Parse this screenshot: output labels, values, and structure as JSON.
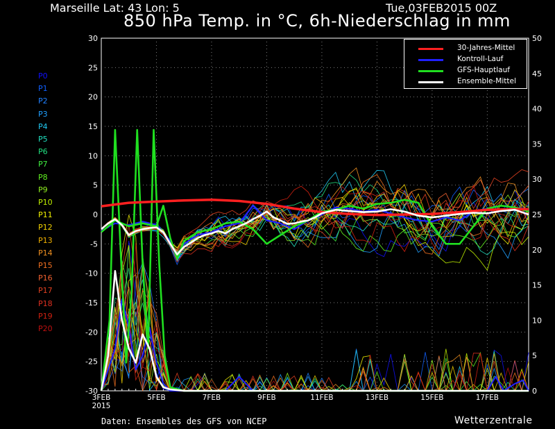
{
  "header": {
    "location": "Marseille  Lat: 43 Lon: 5",
    "date": "Tue,03FEB2015 00Z",
    "title": "850 hPa Temp. in °C, 6h-Niederschlag in mm"
  },
  "footer": {
    "source": "Daten: Ensembles des GFS von NCEP",
    "brand": "Wetterzentrale"
  },
  "colors": {
    "background": "#000000",
    "grid": "#7f7f7f",
    "clim": "#ff2020",
    "control": "#2020ff",
    "main": "#20e020",
    "mean": "#ffffff"
  },
  "ensemble_members": [
    {
      "label": "P0",
      "color": "#1010ff"
    },
    {
      "label": "P1",
      "color": "#1060ff"
    },
    {
      "label": "P2",
      "color": "#2080ff"
    },
    {
      "label": "P3",
      "color": "#20a0ff"
    },
    {
      "label": "P4",
      "color": "#20c8f0"
    },
    {
      "label": "P5",
      "color": "#20e0c0"
    },
    {
      "label": "P6",
      "color": "#20e080"
    },
    {
      "label": "P7",
      "color": "#40f040"
    },
    {
      "label": "P8",
      "color": "#60f020"
    },
    {
      "label": "P9",
      "color": "#90f020"
    },
    {
      "label": "P10",
      "color": "#c0f000"
    },
    {
      "label": "P11",
      "color": "#f0f000"
    },
    {
      "label": "P12",
      "color": "#f0d000"
    },
    {
      "label": "P13",
      "color": "#f0b000"
    },
    {
      "label": "P14",
      "color": "#f09020"
    },
    {
      "label": "P15",
      "color": "#f07020"
    },
    {
      "label": "P16",
      "color": "#f06030"
    },
    {
      "label": "P17",
      "color": "#e04020"
    },
    {
      "label": "P18",
      "color": "#e03020"
    },
    {
      "label": "P19",
      "color": "#d02010"
    },
    {
      "label": "P20",
      "color": "#c01010"
    }
  ],
  "chart_data": {
    "type": "line",
    "title": "850 hPa Temp. in °C, 6h-Niederschlag in mm",
    "x_ticks": [
      {
        "label": "3FEB",
        "sub": "2015",
        "day": 0
      },
      {
        "label": "5FEB",
        "day": 2
      },
      {
        "label": "7FEB",
        "day": 4
      },
      {
        "label": "9FEB",
        "day": 6
      },
      {
        "label": "11FEB",
        "day": 8
      },
      {
        "label": "13FEB",
        "day": 10
      },
      {
        "label": "15FEB",
        "day": 12
      },
      {
        "label": "17FEB",
        "day": 14
      }
    ],
    "xlim": [
      0,
      15.5
    ],
    "ylim_left": [
      -30,
      30
    ],
    "ylim_right": [
      0,
      50
    ],
    "y_ticks_left": [
      30,
      25,
      20,
      15,
      10,
      5,
      0,
      -5,
      -10,
      -15,
      -20,
      -25,
      -30
    ],
    "y_ticks_right": [
      50,
      45,
      40,
      35,
      30,
      25,
      20,
      15,
      10,
      5,
      0
    ],
    "grid": true,
    "legend_position": "top-right",
    "legend": [
      {
        "name": "30-Jahres-Mittel",
        "color": "#ff2020"
      },
      {
        "name": "Kontroll-Lauf",
        "color": "#2020ff"
      },
      {
        "name": "GFS-Hauptlauf",
        "color": "#20e020"
      },
      {
        "name": "Ensemble-Mittel",
        "color": "#ffffff"
      }
    ],
    "series": [
      {
        "name": "30-Jahres-Mittel",
        "axis": "left",
        "x": [
          0,
          1,
          2,
          3,
          4,
          5,
          6,
          7,
          8,
          9,
          10,
          11,
          12,
          13,
          14,
          15,
          15.5
        ],
        "y": [
          1.4,
          2.0,
          2.2,
          2.4,
          2.5,
          2.3,
          1.8,
          1.0,
          0.4,
          0.1,
          -0.1,
          0.0,
          0.1,
          0.4,
          0.8,
          0.9,
          0.9
        ]
      },
      {
        "name": "Ensemble-Mittel",
        "axis": "left",
        "x": [
          0,
          0.25,
          0.5,
          0.75,
          1,
          1.25,
          1.5,
          1.75,
          2,
          2.25,
          2.5,
          2.75,
          3,
          3.25,
          3.5,
          3.75,
          4,
          4.25,
          4.5,
          4.75,
          5,
          5.25,
          5.5,
          5.75,
          6,
          6.25,
          6.5,
          6.75,
          7,
          7.25,
          7.5,
          7.75,
          8,
          8.5,
          9,
          9.5,
          10,
          10.5,
          11,
          11.5,
          12,
          12.5,
          13,
          13.5,
          14,
          14.5,
          15,
          15.5
        ],
        "y": [
          -2.5,
          -1.5,
          -0.8,
          -1.8,
          -3.5,
          -2.8,
          -2.5,
          -2.3,
          -2.2,
          -3.0,
          -5.0,
          -6.8,
          -5.5,
          -4.8,
          -4.0,
          -3.5,
          -3.2,
          -2.8,
          -3.2,
          -2.5,
          -2.0,
          -1.5,
          -0.8,
          -0.2,
          0.5,
          -0.5,
          -1.0,
          -1.6,
          -1.5,
          -1.2,
          -1.0,
          -0.5,
          0.2,
          0.8,
          0.6,
          0.4,
          0.5,
          0.9,
          0.5,
          -0.2,
          -0.5,
          -0.2,
          0.1,
          0.3,
          0.2,
          0.6,
          0.8,
          0.0
        ]
      },
      {
        "name": "GFS-Hauptlauf",
        "axis": "left",
        "x": [
          0,
          0.5,
          1,
          1.5,
          2,
          2.25,
          2.5,
          2.75,
          3,
          3.5,
          4,
          4.5,
          5,
          5.5,
          6,
          6.5,
          7,
          7.5,
          8,
          8.5,
          9,
          9.5,
          10,
          10.5,
          11,
          11.5,
          12,
          12.5,
          13,
          13.5,
          14,
          14.5,
          15,
          15.5
        ],
        "y": [
          -3.0,
          -1.0,
          -2.0,
          -1.5,
          -2.0,
          1.5,
          -4.0,
          -7.5,
          -4.5,
          -3.0,
          -2.5,
          -1.5,
          -1.2,
          -2.5,
          -5.0,
          -3.5,
          -2.0,
          -1.0,
          0.5,
          0.8,
          1.5,
          1.0,
          1.8,
          2.0,
          2.5,
          2.0,
          -2.0,
          -5.0,
          -5.0,
          -2.0,
          1.0,
          1.5,
          1.2,
          0.5
        ]
      },
      {
        "name": "Kontroll-Lauf",
        "axis": "left",
        "x": [
          0,
          0.5,
          1,
          1.5,
          2,
          2.5,
          2.75,
          3,
          3.5,
          4,
          4.5,
          5,
          5.5,
          6,
          6.5,
          7,
          7.5,
          8,
          8.5,
          9,
          9.5,
          10,
          10.5,
          11,
          11.5,
          12,
          12.5,
          13,
          13.5,
          14,
          14.5,
          15,
          15.5
        ],
        "y": [
          -2.8,
          -1.5,
          -1.8,
          -1.2,
          -1.8,
          -4.5,
          -7.0,
          -5.0,
          -3.5,
          -3.0,
          -2.0,
          -1.5,
          1.5,
          -1.0,
          -1.5,
          -2.5,
          -1.0,
          0.0,
          1.2,
          1.0,
          0.5,
          0.8,
          0.2,
          -0.5,
          -1.0,
          -1.2,
          -0.5,
          -1.0,
          0.5,
          1.0,
          1.5,
          1.2,
          0.8
        ]
      },
      {
        "name": "Ensemble-Mittel Niederschlag",
        "axis": "right",
        "x": [
          0,
          0.25,
          0.5,
          0.75,
          1,
          1.25,
          1.5,
          1.75,
          2,
          2.25,
          2.5,
          3,
          15.5
        ],
        "y": [
          0,
          5,
          17,
          10,
          6,
          4,
          8,
          6,
          2,
          0.5,
          0.2,
          0,
          0
        ]
      },
      {
        "name": "GFS-Hauptlauf Niederschlag",
        "axis": "right",
        "x": [
          0,
          0.3,
          0.5,
          0.7,
          0.9,
          1.1,
          1.3,
          1.5,
          1.7,
          1.9,
          2.1,
          2.3,
          2.5,
          3,
          15.5
        ],
        "y": [
          0,
          10,
          37,
          20,
          4,
          14,
          37,
          18,
          6,
          37,
          18,
          5,
          0.5,
          0,
          0
        ]
      },
      {
        "name": "Kontroll-Lauf Niederschlag",
        "axis": "right",
        "x": [
          0,
          0.5,
          0.75,
          1,
          1.25,
          1.5,
          1.75,
          2,
          2.25,
          2.5,
          3,
          4.5,
          5,
          5.5,
          14,
          14.3,
          14.6,
          15,
          15.3,
          15.5
        ],
        "y": [
          0,
          6,
          13,
          9,
          3,
          5,
          9,
          4,
          1,
          0,
          0,
          0,
          2,
          0,
          0,
          2,
          0,
          1,
          1.5,
          0
        ]
      }
    ]
  }
}
